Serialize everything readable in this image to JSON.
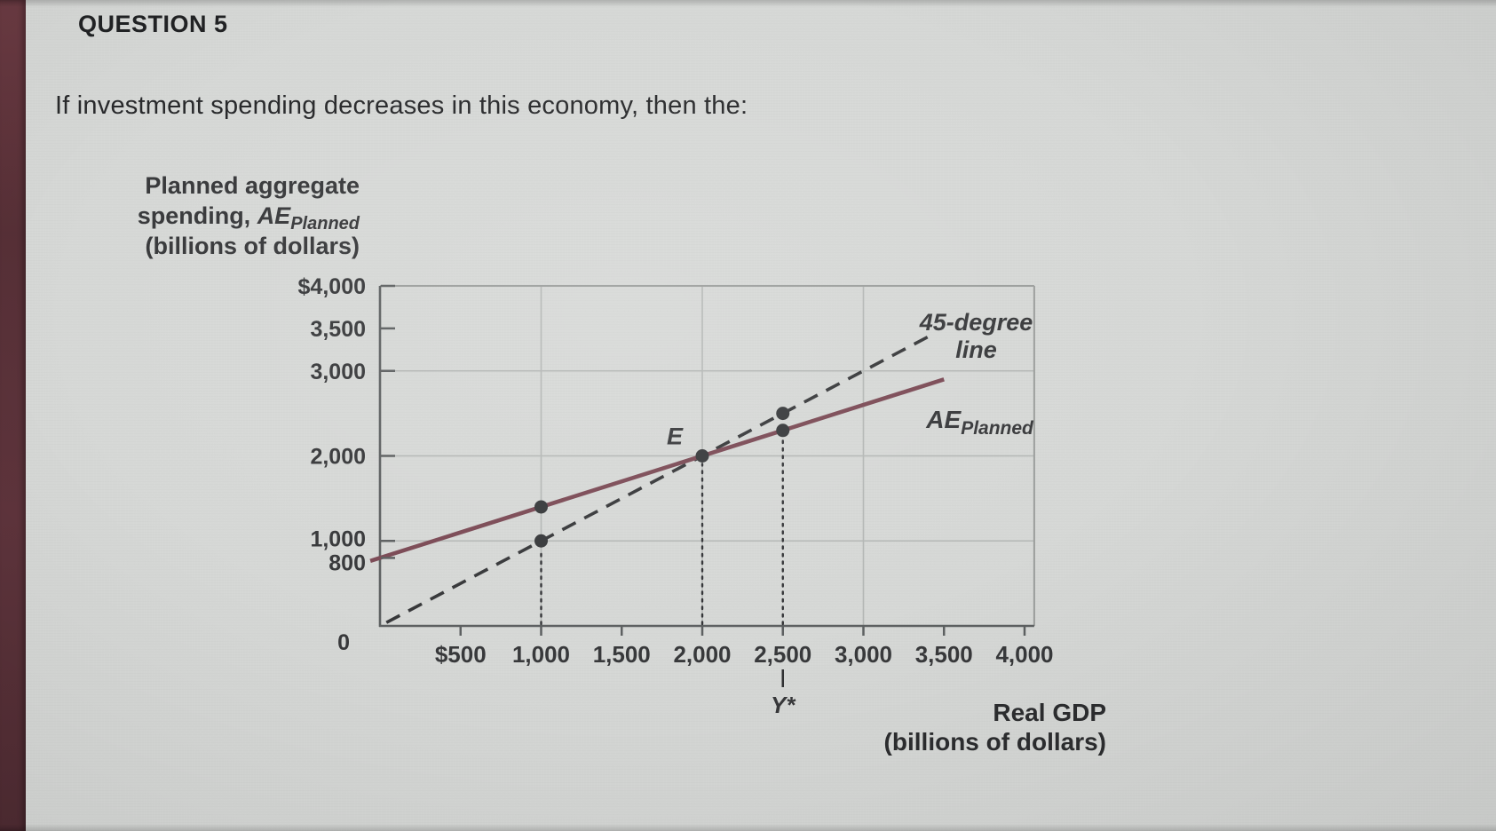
{
  "page": {
    "question_label": "QUESTION 5",
    "question_text": "If investment spending decreases in this economy, then the:"
  },
  "chart_data": {
    "type": "line",
    "description": "Keynesian cross diagram: planned aggregate expenditure versus real GDP",
    "x_axis": {
      "title_lines": [
        "Real GDP",
        "(billions of dollars)"
      ],
      "lim": [
        0,
        4060
      ],
      "ticks": [
        {
          "v": 500,
          "label": "$500"
        },
        {
          "v": 1000,
          "label": "1,000"
        },
        {
          "v": 1500,
          "label": "1,500"
        },
        {
          "v": 2000,
          "label": "2,000"
        },
        {
          "v": 2500,
          "label": "2,500"
        },
        {
          "v": 3000,
          "label": "3,000"
        },
        {
          "v": 3500,
          "label": "3,500"
        },
        {
          "v": 4000,
          "label": "4,000"
        }
      ]
    },
    "y_axis": {
      "title": {
        "line1": "Planned aggregate",
        "line2_pre": "spending, ",
        "line2_var": "AE",
        "line2_sub": "Planned",
        "line3": "(billions of dollars)"
      },
      "lim": [
        0,
        4000
      ],
      "ticks": [
        {
          "v": 4000,
          "label": "$4,000"
        },
        {
          "v": 3500,
          "label": "3,500"
        },
        {
          "v": 3000,
          "label": "3,000"
        },
        {
          "v": 2000,
          "label": "2,000"
        },
        {
          "v": 1000,
          "label": "1,000"
        },
        {
          "v": 800,
          "label": "800"
        },
        {
          "v": 0,
          "label": "0"
        }
      ]
    },
    "gridlines": {
      "x": [
        1000,
        2000,
        3000
      ],
      "y": [
        1000,
        2000,
        3000
      ]
    },
    "series": [
      {
        "name": "45-degree line",
        "style": "dashed",
        "color": "#37383a",
        "points": [
          [
            40,
            40
          ],
          [
            3430,
            3430
          ]
        ]
      },
      {
        "name": "AE_Planned",
        "style": "solid",
        "color": "#7b4a55",
        "intercept": 800,
        "slope": 0.6,
        "points": [
          [
            -60,
            764
          ],
          [
            3500,
            2900
          ]
        ]
      }
    ],
    "dots": [
      {
        "x": 1000,
        "y": 1400,
        "on": "AE_Planned"
      },
      {
        "x": 1000,
        "y": 1000,
        "on": "45-degree line"
      },
      {
        "x": 2000,
        "y": 2000,
        "on": "equilibrium",
        "label": "E"
      },
      {
        "x": 2500,
        "y": 2500,
        "on": "45-degree line"
      },
      {
        "x": 2500,
        "y": 2300,
        "on": "AE_Planned"
      }
    ],
    "guides_x": [
      {
        "x": 1000,
        "to_y": 1000
      },
      {
        "x": 2000,
        "to_y": 2000
      },
      {
        "x": 2500,
        "to_y": 2300
      }
    ],
    "annotations": {
      "line_45": {
        "lines": [
          "45-degree",
          "line"
        ],
        "x": 3700,
        "y": 3560
      },
      "ae": {
        "var": "AE",
        "sub": "Planned",
        "x": 3390,
        "y": 2330
      },
      "x_star": {
        "x": 2500,
        "label": "Y*"
      }
    },
    "equilibrium": {
      "x": 2000,
      "y": 2000,
      "label": "E"
    }
  },
  "colors": {
    "background": "#d6d8d6",
    "left_strip": "#5a3139",
    "ae_line": "#7b4a55",
    "dashed_45_line": "#37383a",
    "grid": "#b4b7b5",
    "axis": "#5d6061",
    "chart_text": "#38393b"
  }
}
